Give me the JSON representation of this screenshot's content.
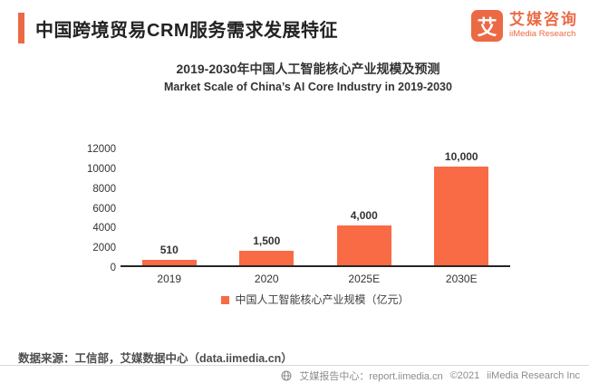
{
  "page": {
    "title": "中国跨境贸易CRM服务需求发展特征"
  },
  "brand": {
    "logo_glyph": "艾",
    "name_cn": "艾媒咨询",
    "name_en": "iiMedia Research",
    "color": "#EB6A45"
  },
  "chart_data": {
    "type": "bar",
    "title": "2019-2030年中国人工智能核心产业规模及预测",
    "subtitle": "Market Scale of China’s AI Core Industry in 2019-2030",
    "categories": [
      "2019",
      "2020",
      "2025E",
      "2030E"
    ],
    "values": [
      510,
      1500,
      4000,
      10000
    ],
    "value_labels": [
      "510",
      "1,500",
      "4,000",
      "10,000"
    ],
    "series_name": "中国人工智能核心产业规模（亿元）",
    "xlabel": "",
    "ylabel": "",
    "ylim": [
      0,
      12000
    ],
    "yticks": [
      0,
      2000,
      4000,
      6000,
      8000,
      10000,
      12000
    ],
    "bar_color": "#F96B44",
    "grid": false,
    "legend_position": "bottom"
  },
  "footer": {
    "source": "数据来源：工信部，艾媒数据中心（data.iimedia.cn）",
    "report_center": "艾媒报告中心：report.iimedia.cn",
    "copyright": "©2021",
    "company": "iiMedia Research Inc"
  }
}
